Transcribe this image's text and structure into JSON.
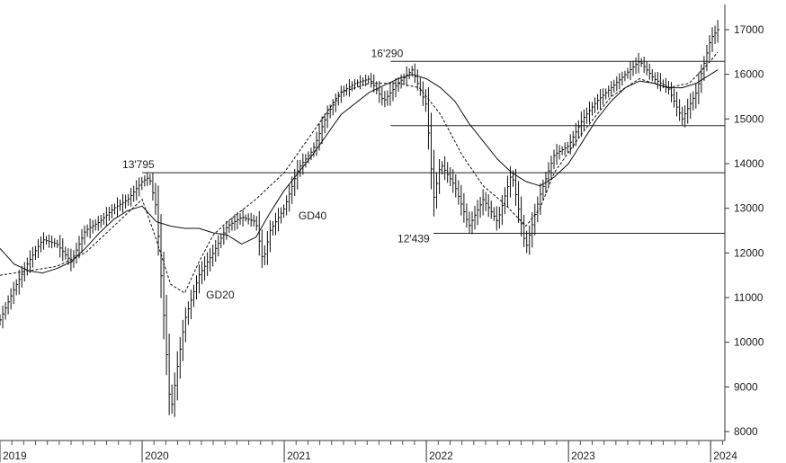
{
  "chart_data": {
    "type": "line",
    "title": "",
    "xlabel": "",
    "ylabel": "",
    "x_tick_labels": [
      "2019",
      "2020",
      "2021",
      "2022",
      "2023",
      "2024"
    ],
    "y_ticks": [
      8000,
      9000,
      10000,
      11000,
      12000,
      13000,
      14000,
      15000,
      16000,
      17000
    ],
    "y_tick_labels": [
      "8000",
      "9000",
      "10000",
      "11000",
      "12000",
      "13000",
      "14000",
      "15000",
      "16000",
      "17000"
    ],
    "xlim": [
      2019.0,
      2024.1
    ],
    "ylim": [
      7800,
      17300
    ],
    "grid": false,
    "legend": "none",
    "series": [
      {
        "name": "",
        "style": "weekly-bars",
        "x": [
          2019.0,
          2019.1,
          2019.2,
          2019.3,
          2019.4,
          2019.5,
          2019.6,
          2019.7,
          2019.8,
          2019.9,
          2020.0,
          2020.05,
          2020.1,
          2020.2,
          2020.25,
          2020.3,
          2020.4,
          2020.5,
          2020.6,
          2020.7,
          2020.8,
          2020.85,
          2020.9,
          2021.0,
          2021.1,
          2021.2,
          2021.3,
          2021.4,
          2021.5,
          2021.6,
          2021.7,
          2021.8,
          2021.9,
          2022.0,
          2022.05,
          2022.1,
          2022.2,
          2022.3,
          2022.4,
          2022.5,
          2022.6,
          2022.7,
          2022.8,
          2022.9,
          2023.0,
          2023.1,
          2023.2,
          2023.3,
          2023.4,
          2023.5,
          2023.6,
          2023.7,
          2023.8,
          2023.9,
          2024.0,
          2024.05
        ],
        "values": [
          10500,
          11200,
          11800,
          12300,
          12200,
          11800,
          12500,
          12700,
          13000,
          13200,
          13600,
          13700,
          13000,
          8400,
          9500,
          10500,
          11500,
          12000,
          12600,
          12800,
          12700,
          11800,
          12500,
          13000,
          13900,
          14300,
          15100,
          15600,
          15800,
          15900,
          15400,
          15800,
          16100,
          15300,
          13200,
          14000,
          13500,
          12600,
          13200,
          12700,
          13800,
          12100,
          13300,
          14200,
          14400,
          15000,
          15400,
          15700,
          16000,
          16300,
          15900,
          15700,
          15000,
          15600,
          16800,
          17000
        ]
      },
      {
        "name": "GD20",
        "style": "dashed",
        "x": [
          2019.0,
          2019.2,
          2019.4,
          2019.6,
          2019.8,
          2020.0,
          2020.1,
          2020.2,
          2020.3,
          2020.4,
          2020.5,
          2020.6,
          2020.8,
          2021.0,
          2021.2,
          2021.4,
          2021.6,
          2021.8,
          2021.95,
          2022.1,
          2022.25,
          2022.4,
          2022.55,
          2022.7,
          2022.8,
          2022.9,
          2023.1,
          2023.3,
          2023.5,
          2023.7,
          2023.85,
          2024.0,
          2024.05
        ],
        "values": [
          11500,
          11600,
          11700,
          12000,
          12600,
          13200,
          12300,
          11300,
          11100,
          11800,
          12400,
          12700,
          13200,
          13800,
          14700,
          15600,
          15800,
          15800,
          15700,
          15100,
          14200,
          13500,
          13100,
          12600,
          13000,
          13800,
          14700,
          15500,
          15900,
          15700,
          15800,
          16300,
          16500
        ]
      },
      {
        "name": "GD40",
        "style": "solid",
        "x": [
          2019.0,
          2019.1,
          2019.2,
          2019.3,
          2019.4,
          2019.5,
          2019.6,
          2019.7,
          2019.8,
          2019.9,
          2020.0,
          2020.1,
          2020.2,
          2020.3,
          2020.4,
          2020.5,
          2020.6,
          2020.7,
          2020.8,
          2020.9,
          2021.0,
          2021.2,
          2021.4,
          2021.6,
          2021.8,
          2021.9,
          2022.0,
          2022.1,
          2022.2,
          2022.3,
          2022.4,
          2022.5,
          2022.6,
          2022.7,
          2022.8,
          2022.9,
          2023.0,
          2023.1,
          2023.2,
          2023.3,
          2023.4,
          2023.5,
          2023.6,
          2023.7,
          2023.8,
          2023.9,
          2024.0,
          2024.05
        ],
        "values": [
          12100,
          11750,
          11600,
          11550,
          11650,
          11800,
          12100,
          12450,
          12750,
          12950,
          13050,
          12700,
          12600,
          12550,
          12550,
          12450,
          12400,
          12200,
          12350,
          12900,
          13400,
          14200,
          15100,
          15600,
          15900,
          16000,
          15900,
          15700,
          15400,
          14900,
          14500,
          14100,
          13800,
          13600,
          13500,
          13700,
          14000,
          14500,
          15000,
          15400,
          15700,
          15850,
          15800,
          15700,
          15700,
          15800,
          16000,
          16100
        ]
      }
    ],
    "horizontal_lines": [
      {
        "value": 16290,
        "x_start": 2021.75,
        "label": "16'290"
      },
      {
        "value": 14850,
        "x_start": 2021.75,
        "label": ""
      },
      {
        "value": 13795,
        "x_start": 2020.0,
        "label": "13'795"
      },
      {
        "value": 12439,
        "x_start": 2022.05,
        "label": "12'439"
      }
    ],
    "annotations": [
      {
        "text": "GD20",
        "x": 2020.45,
        "y": 10980
      },
      {
        "text": "GD40",
        "x": 2021.1,
        "y": 12750
      }
    ]
  }
}
